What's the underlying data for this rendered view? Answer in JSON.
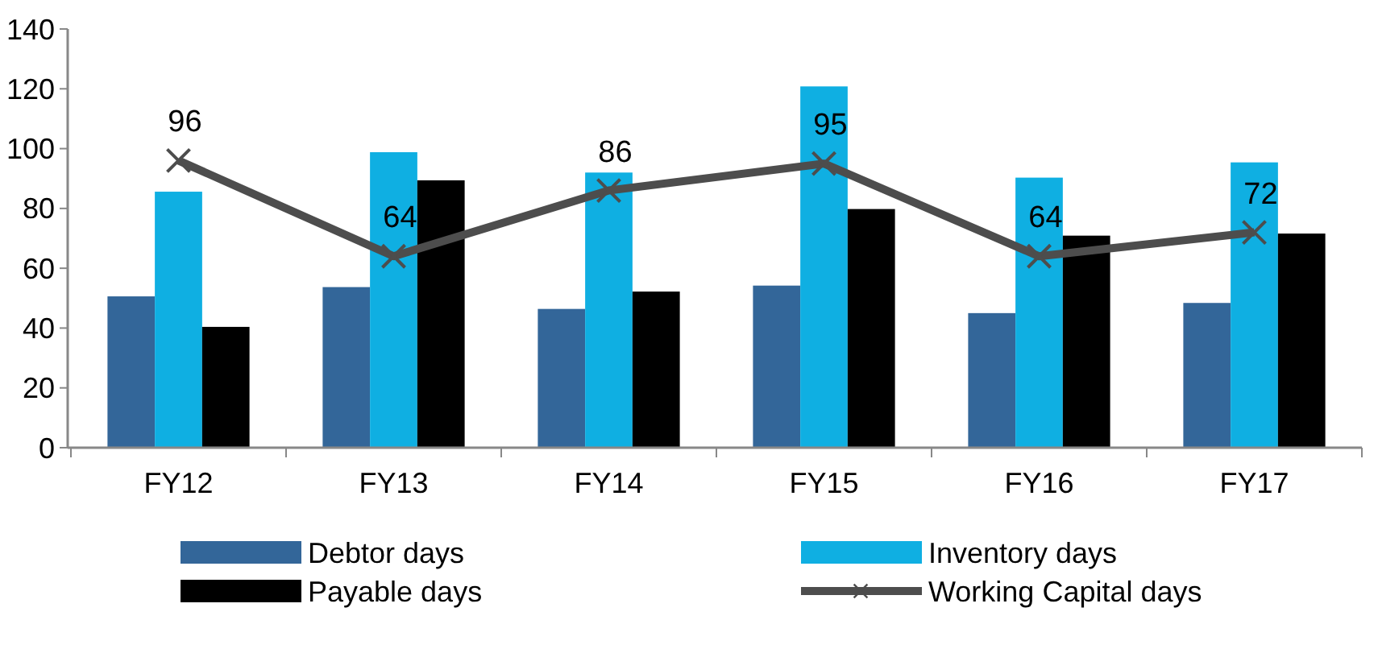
{
  "chart_data": {
    "type": "bar",
    "categories": [
      "FY12",
      "FY13",
      "FY14",
      "FY15",
      "FY16",
      "FY17"
    ],
    "series": [
      {
        "name": "Debtor days",
        "color": "#336699",
        "values": [
          50.6,
          53.7,
          46.4,
          54.2,
          45,
          48.4
        ]
      },
      {
        "name": "Inventory days",
        "color": "#0fafe2",
        "values": [
          85.6,
          98.8,
          92,
          120.8,
          90.3,
          95.4
        ]
      },
      {
        "name": "Payable days",
        "color": "#000000",
        "values": [
          40.4,
          89.4,
          52.2,
          79.8,
          70.9,
          71.6
        ]
      },
      {
        "name": "Working Capital days",
        "type": "line",
        "color": "#4d4d4d",
        "marker": "cross",
        "values": [
          96,
          64,
          86,
          95,
          64,
          72
        ],
        "value_labels": [
          "96",
          "64",
          "86",
          "95",
          "64",
          "72"
        ]
      }
    ],
    "ylim": [
      0,
      140
    ],
    "yticks": [
      0,
      20,
      40,
      60,
      80,
      100,
      120,
      140
    ],
    "grid": false,
    "legend": "bottom"
  }
}
